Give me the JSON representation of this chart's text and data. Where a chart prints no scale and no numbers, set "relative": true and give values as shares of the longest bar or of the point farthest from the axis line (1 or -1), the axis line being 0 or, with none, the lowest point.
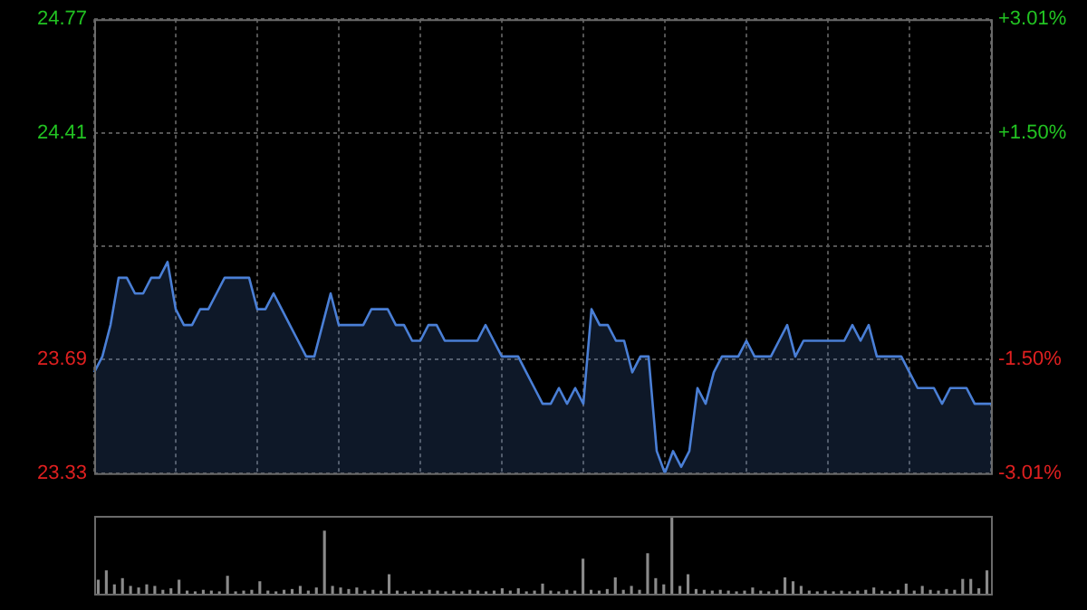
{
  "chart_data": [
    {
      "type": "area",
      "categories": [
        null,
        null,
        null,
        null,
        null,
        null,
        null,
        null,
        null,
        null,
        null,
        null,
        null,
        null,
        null,
        null,
        null,
        null,
        null,
        null,
        null,
        null,
        null,
        null,
        null,
        null,
        null,
        null,
        null,
        null,
        null,
        null,
        null,
        null,
        null,
        null,
        null,
        null,
        null,
        null,
        null,
        null,
        null,
        null,
        null,
        null,
        null,
        null,
        null,
        null,
        null,
        null,
        null,
        null,
        null,
        null,
        null,
        null,
        null,
        null,
        null,
        null,
        null,
        null,
        null,
        null,
        null,
        null,
        null,
        null,
        null,
        null,
        null,
        null,
        null,
        null,
        null,
        null,
        null,
        null,
        null,
        null,
        null,
        null,
        null,
        null,
        null,
        null,
        null,
        null,
        null,
        null,
        null,
        null,
        null,
        null,
        null,
        null,
        null,
        null,
        null,
        null,
        null,
        null,
        null,
        null,
        null,
        null,
        null,
        null,
        null
      ],
      "color": "#4a7fd6",
      "values": [
        23.65,
        23.7,
        23.8,
        23.95,
        23.95,
        23.9,
        23.9,
        23.95,
        23.95,
        24.0,
        23.85,
        23.8,
        23.8,
        23.85,
        23.85,
        23.9,
        23.95,
        23.95,
        23.95,
        23.95,
        23.85,
        23.85,
        23.9,
        23.85,
        23.8,
        23.75,
        23.7,
        23.7,
        23.8,
        23.9,
        23.8,
        23.8,
        23.8,
        23.8,
        23.85,
        23.85,
        23.85,
        23.8,
        23.8,
        23.75,
        23.75,
        23.8,
        23.8,
        23.75,
        23.75,
        23.75,
        23.75,
        23.75,
        23.8,
        23.75,
        23.7,
        23.7,
        23.7,
        23.65,
        23.6,
        23.55,
        23.55,
        23.6,
        23.55,
        23.6,
        23.55,
        23.85,
        23.8,
        23.8,
        23.75,
        23.75,
        23.65,
        23.7,
        23.7,
        23.4,
        23.33,
        23.4,
        23.35,
        23.4,
        23.6,
        23.55,
        23.65,
        23.7,
        23.7,
        23.7,
        23.75,
        23.7,
        23.7,
        23.7,
        23.75,
        23.8,
        23.7,
        23.75,
        23.75,
        23.75,
        23.75,
        23.75,
        23.75,
        23.8,
        23.75,
        23.8,
        23.7,
        23.7,
        23.7,
        23.7,
        23.65,
        23.6,
        23.6,
        23.6,
        23.55,
        23.6,
        23.6,
        23.6,
        23.55,
        23.55,
        23.55
      ],
      "ylim": [
        23.33,
        24.77
      ],
      "yticks": [
        23.33,
        23.69,
        {
          "value": 24.05,
          "label": null
        },
        24.41,
        24.77
      ],
      "y2lim": [
        -3.01,
        3.01
      ],
      "y2ticks": [
        {
          "value": -3.01,
          "label": "-3.01%"
        },
        {
          "value": -1.5,
          "label": "-1.50%"
        },
        {
          "value": 0,
          "label": null
        },
        {
          "value": 1.5,
          "label": "+1.50%"
        },
        {
          "value": 3.01,
          "label": "+3.01%"
        }
      ],
      "grid": true,
      "legend": false
    },
    {
      "type": "bar",
      "relative": true,
      "color": "#8a8a8a",
      "categories": [
        null,
        null,
        null,
        null,
        null,
        null,
        null,
        null,
        null,
        null,
        null,
        null,
        null,
        null,
        null,
        null,
        null,
        null,
        null,
        null,
        null,
        null,
        null,
        null,
        null,
        null,
        null,
        null,
        null,
        null,
        null,
        null,
        null,
        null,
        null,
        null,
        null,
        null,
        null,
        null,
        null,
        null,
        null,
        null,
        null,
        null,
        null,
        null,
        null,
        null,
        null,
        null,
        null,
        null,
        null,
        null,
        null,
        null,
        null,
        null,
        null,
        null,
        null,
        null,
        null,
        null,
        null,
        null,
        null,
        null,
        null,
        null,
        null,
        null,
        null,
        null,
        null,
        null,
        null,
        null,
        null,
        null,
        null,
        null,
        null,
        null,
        null,
        null,
        null,
        null,
        null,
        null,
        null,
        null,
        null,
        null,
        null,
        null,
        null,
        null,
        null,
        null,
        null,
        null,
        null,
        null,
        null,
        null,
        null,
        null,
        null
      ],
      "values": [
        0.18,
        0.3,
        0.12,
        0.2,
        0.1,
        0.08,
        0.12,
        0.1,
        0.05,
        0.07,
        0.18,
        0.04,
        0.03,
        0.05,
        0.04,
        0.03,
        0.23,
        0.03,
        0.04,
        0.05,
        0.16,
        0.04,
        0.03,
        0.05,
        0.06,
        0.1,
        0.04,
        0.08,
        0.81,
        0.1,
        0.08,
        0.06,
        0.08,
        0.04,
        0.05,
        0.04,
        0.25,
        0.04,
        0.03,
        0.04,
        0.03,
        0.05,
        0.04,
        0.03,
        0.04,
        0.03,
        0.05,
        0.04,
        0.03,
        0.04,
        0.07,
        0.04,
        0.07,
        0.03,
        0.04,
        0.13,
        0.04,
        0.03,
        0.05,
        0.04,
        0.45,
        0.05,
        0.04,
        0.06,
        0.21,
        0.05,
        0.1,
        0.05,
        0.52,
        0.2,
        0.12,
        1,
        0.1,
        0.25,
        0.06,
        0.05,
        0.04,
        0.05,
        0.04,
        0.03,
        0.04,
        0.08,
        0.04,
        0.03,
        0.05,
        0.21,
        0.16,
        0.1,
        0.04,
        0.03,
        0.04,
        0.03,
        0.04,
        0.03,
        0.04,
        0.05,
        0.08,
        0.04,
        0.03,
        0.05,
        0.13,
        0.04,
        0.1,
        0.05,
        0.04,
        0.06,
        0.05,
        0.19,
        0.19,
        0.07,
        0.3
      ]
    }
  ]
}
